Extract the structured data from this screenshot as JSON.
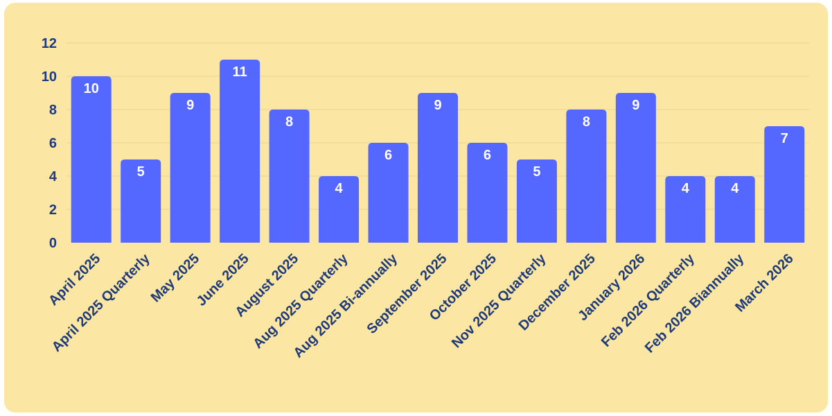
{
  "chart_data": {
    "type": "bar",
    "title": "",
    "xlabel": "",
    "ylabel": "",
    "categories": [
      "April 2025",
      "April 2025 Quarterly",
      "May 2025",
      "June 2025",
      "August 2025",
      "Aug 2025 Quarterly",
      "Aug 2025 Bi-annually",
      "September 2025",
      "October 2025",
      "Nov 2025 Quarterly",
      "December 2025",
      "January 2026",
      "Feb 2026 Quarterly",
      "Feb 2026 Biannually",
      "March 2026"
    ],
    "values": [
      10,
      5,
      9,
      11,
      8,
      4,
      6,
      9,
      6,
      5,
      8,
      9,
      4,
      4,
      7
    ],
    "ylim": [
      0,
      12
    ],
    "yticks": [
      0,
      2,
      4,
      6,
      8,
      10,
      12
    ],
    "grid": true,
    "data_labels": true,
    "colors": {
      "bar": "#5468ff",
      "background": "#fbe6a4",
      "text": "#1e3a78",
      "data_label": "#ffffff",
      "grid": "#ebd58e"
    }
  }
}
